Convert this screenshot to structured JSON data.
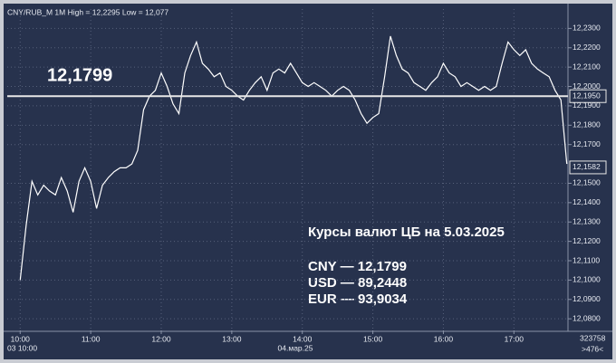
{
  "chart_data": {
    "type": "line",
    "title": "CNY/RUB_M 1M High = 12,2295 Low = 12,077",
    "big_price": "12,1799",
    "annotation_title": "Курсы валют ЦБ на 5.03.2025",
    "annotation_lines": [
      "CNY — 12,1799",
      "USD — 89,2448",
      "EUR — 93,9034"
    ],
    "x_start_label": "03 10:00",
    "date_label": "04.мар.25",
    "counter": "323758",
    "scroll_label": ">476<",
    "color": "#ffffff",
    "x": [
      600,
      605,
      610,
      615,
      620,
      625,
      630,
      635,
      640,
      645,
      650,
      655,
      660,
      665,
      670,
      675,
      680,
      685,
      690,
      695,
      700,
      705,
      710,
      715,
      720,
      725,
      730,
      735,
      740,
      745,
      750,
      755,
      760,
      765,
      770,
      775,
      780,
      785,
      790,
      795,
      800,
      805,
      810,
      815,
      820,
      825,
      830,
      835,
      840,
      845,
      850,
      855,
      860,
      865,
      870,
      875,
      880,
      885,
      890,
      895,
      900,
      905,
      910,
      915,
      920,
      925,
      930,
      935,
      940,
      945,
      950,
      955,
      960,
      965,
      970,
      975,
      980,
      985,
      990,
      995,
      1000,
      1005,
      1010,
      1015,
      1020,
      1025,
      1030,
      1035,
      1040,
      1045,
      1050,
      1055,
      1060,
      1065
    ],
    "values": [
      12.1,
      12.128,
      12.151,
      12.144,
      12.149,
      12.146,
      12.144,
      12.153,
      12.146,
      12.135,
      12.151,
      12.158,
      12.151,
      12.137,
      12.149,
      12.153,
      12.156,
      12.158,
      12.158,
      12.16,
      12.167,
      12.188,
      12.195,
      12.198,
      12.207,
      12.2,
      12.191,
      12.186,
      12.207,
      12.216,
      12.223,
      12.212,
      12.209,
      12.205,
      12.207,
      12.2,
      12.198,
      12.195,
      12.193,
      12.198,
      12.202,
      12.205,
      12.198,
      12.207,
      12.209,
      12.207,
      12.212,
      12.207,
      12.202,
      12.2,
      12.202,
      12.2,
      12.198,
      12.195,
      12.198,
      12.2,
      12.198,
      12.193,
      12.186,
      12.181,
      12.184,
      12.186,
      12.205,
      12.226,
      12.216,
      12.209,
      12.207,
      12.202,
      12.2,
      12.198,
      12.202,
      12.205,
      12.212,
      12.207,
      12.205,
      12.2,
      12.202,
      12.2,
      12.198,
      12.2,
      12.198,
      12.2,
      12.212,
      12.223,
      12.219,
      12.216,
      12.219,
      12.212,
      12.209,
      12.207,
      12.205,
      12.198,
      12.193,
      12.16
    ],
    "xlim": [
      589,
      1066
    ],
    "xticks": [
      {
        "value": 600,
        "label": "10:00"
      },
      {
        "value": 660,
        "label": "11:00"
      },
      {
        "value": 720,
        "label": "12:00"
      },
      {
        "value": 780,
        "label": "13:00"
      },
      {
        "value": 840,
        "label": "14:00"
      },
      {
        "value": 900,
        "label": "15:00"
      },
      {
        "value": 960,
        "label": "16:00"
      },
      {
        "value": 1020,
        "label": "17:00"
      }
    ],
    "ylim": [
      12.074,
      12.24
    ],
    "yticks": [
      {
        "value": 12.08,
        "label": "12,0800"
      },
      {
        "value": 12.09,
        "label": "12,0900"
      },
      {
        "value": 12.1,
        "label": "12,1000"
      },
      {
        "value": 12.11,
        "label": "12,1100"
      },
      {
        "value": 12.12,
        "label": "12,1200"
      },
      {
        "value": 12.13,
        "label": "12,1300"
      },
      {
        "value": 12.14,
        "label": "12,1400"
      },
      {
        "value": 12.15,
        "label": "12,1500"
      },
      {
        "value": 12.17,
        "label": "12,1700"
      },
      {
        "value": 12.18,
        "label": "12,1800"
      },
      {
        "value": 12.19,
        "label": "12,1900"
      },
      {
        "value": 12.2,
        "label": "12,2000"
      },
      {
        "value": 12.21,
        "label": "12,2100"
      },
      {
        "value": 12.22,
        "label": "12,2200"
      },
      {
        "value": 12.23,
        "label": "12,2300"
      }
    ],
    "reference_line": {
      "value": 12.195,
      "label": "12,1950"
    },
    "last_price": {
      "value": 12.1582,
      "label": "12,1582"
    },
    "grid": true
  }
}
